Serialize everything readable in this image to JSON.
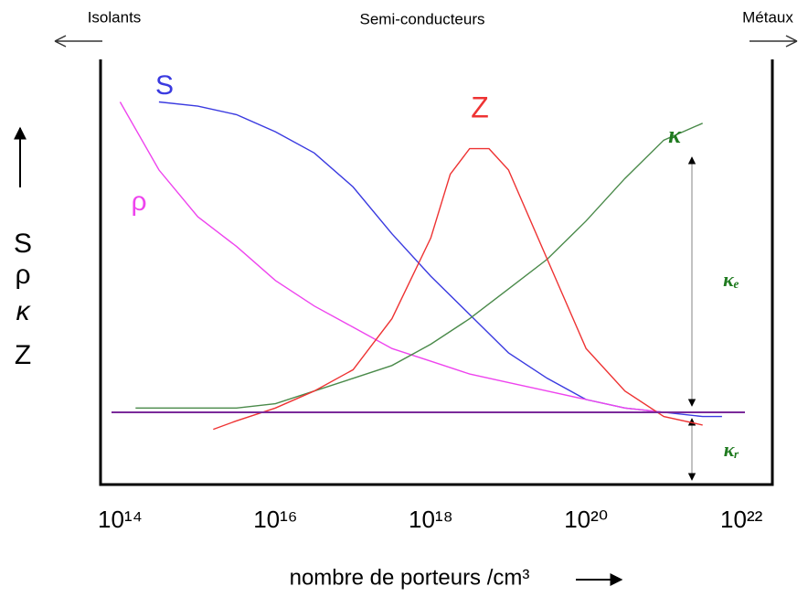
{
  "chart_data": {
    "type": "line",
    "log_x": true,
    "xlim": [
      56000000000000.0,
      2.5e+22
    ],
    "ylim": [
      0,
      1
    ],
    "xticks": [
      {
        "value": 100000000000000.0,
        "label": "10¹⁴"
      },
      {
        "value": 1e+16,
        "label": "10¹⁶"
      },
      {
        "value": 1e+18,
        "label": "10¹⁸"
      },
      {
        "value": 1e+20,
        "label": "10²⁰"
      },
      {
        "value": 1e+22,
        "label": "10²²"
      }
    ],
    "x_label": "nombre de porteurs /cm³",
    "y_label": [
      "S",
      "ρ",
      "κ",
      "Z"
    ],
    "region_labels": [
      "Isolants",
      "Semi-conducteurs",
      "Métaux"
    ],
    "series": [
      {
        "name": "S",
        "color": "#3a3ae0",
        "x": [
          316000000000000.0,
          1000000000000000.0,
          3160000000000000.0,
          1e+16,
          3.16e+16,
          1e+17,
          3.16e+17,
          1e+18,
          3.16e+18,
          1e+19,
          3.16e+19,
          1e+20,
          3.16e+20,
          1e+21,
          3.16e+21,
          5.62e+21
        ],
        "values": [
          0.9,
          0.89,
          0.87,
          0.83,
          0.78,
          0.7,
          0.59,
          0.49,
          0.4,
          0.31,
          0.25,
          0.2,
          0.18,
          0.17,
          0.16,
          0.16
        ]
      },
      {
        "name": "ρ",
        "color": "#ee44ee",
        "x": [
          100000000000000.0,
          316000000000000.0,
          1000000000000000.0,
          3160000000000000.0,
          1e+16,
          3.16e+16,
          1e+17,
          3.16e+17,
          1e+18,
          3.16e+18,
          1e+19,
          3.16e+19,
          1e+20,
          3.16e+20,
          1e+21,
          3.16e+21
        ],
        "values": [
          0.9,
          0.74,
          0.63,
          0.56,
          0.48,
          0.42,
          0.37,
          0.32,
          0.29,
          0.26,
          0.24,
          0.22,
          0.2,
          0.18,
          0.17,
          0.17
        ]
      },
      {
        "name": "κ",
        "color": "#4a8a4a",
        "x": [
          158000000000000.0,
          1000000000000000.0,
          3160000000000000.0,
          1e+16,
          3.16e+16,
          1e+17,
          3.16e+17,
          1e+18,
          3.16e+18,
          1e+19,
          3.16e+19,
          1e+20,
          3.16e+20,
          1e+21,
          3.16e+21
        ],
        "values": [
          0.18,
          0.18,
          0.18,
          0.19,
          0.22,
          0.25,
          0.28,
          0.33,
          0.39,
          0.46,
          0.53,
          0.62,
          0.72,
          0.81,
          0.85
        ]
      },
      {
        "name": "Z",
        "color": "#ee3333",
        "x": [
          1580000000000000.0,
          3160000000000000.0,
          1e+16,
          3.16e+16,
          1e+17,
          3.16e+17,
          1e+18,
          1.78e+18,
          3.16e+18,
          5.62e+18,
          1e+19,
          3.16e+19,
          1e+20,
          3.16e+20,
          1e+21,
          3.16e+21
        ],
        "values": [
          0.13,
          0.15,
          0.18,
          0.22,
          0.27,
          0.39,
          0.58,
          0.73,
          0.79,
          0.79,
          0.74,
          0.53,
          0.32,
          0.22,
          0.16,
          0.14
        ]
      }
    ],
    "lattice_line": {
      "value": 0.17,
      "color": "#7a2a9a"
    },
    "annotations": [
      "κₑ",
      "κᵣ"
    ]
  }
}
